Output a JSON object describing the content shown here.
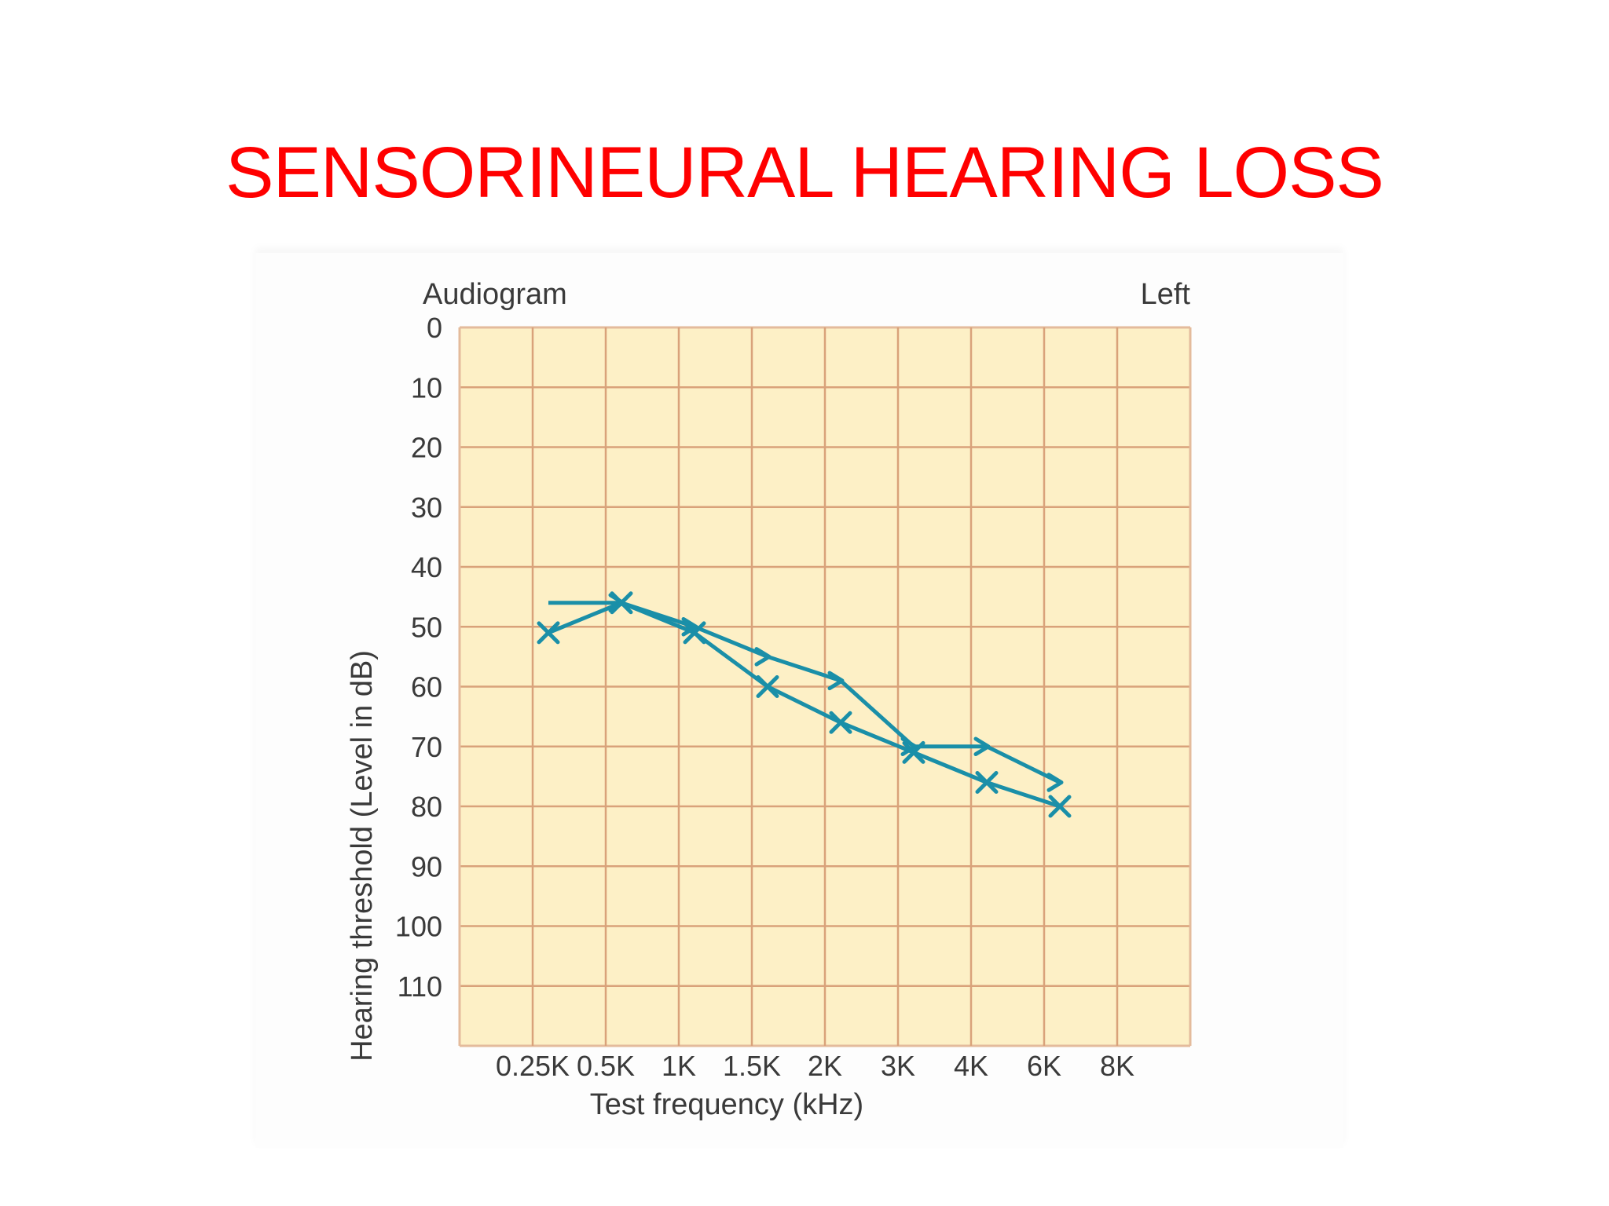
{
  "slide": {
    "title": "SENSORINEURAL HEARING LOSS"
  },
  "chart_data": {
    "type": "line",
    "title": "Audiogram",
    "corner_label": "Left",
    "xlabel": "Test frequency (kHz)",
    "ylabel": "Hearing threshold (Level in dB)",
    "categories": [
      "0.25K",
      "0.5K",
      "1K",
      "1.5K",
      "2K",
      "3K",
      "4K",
      "6K",
      "8K"
    ],
    "yticks": [
      0,
      10,
      20,
      30,
      40,
      50,
      60,
      70,
      80,
      90,
      100,
      110
    ],
    "ylim": [
      0,
      120
    ],
    "y_inverted": true,
    "grid": true,
    "colors": {
      "plot_background": "#fdf0c6",
      "grid": "#d9a27a",
      "line": "#1a8fa8",
      "title_text": "#ff0000"
    },
    "series": [
      {
        "marker": "x",
        "points": [
          {
            "x": "0.25K",
            "y": 51
          },
          {
            "x": "0.5K",
            "y": 46
          },
          {
            "x": "1K",
            "y": 51
          },
          {
            "x": "1.5K",
            "y": 60
          },
          {
            "x": "2K",
            "y": 66
          },
          {
            "x": "3K",
            "y": 71
          },
          {
            "x": "4K",
            "y": 76
          },
          {
            "x": "6K",
            "y": 80
          }
        ]
      },
      {
        "marker": ">",
        "points": [
          {
            "x": "0.25K",
            "y": 46
          },
          {
            "x": "0.5K",
            "y": 46
          },
          {
            "x": "1K",
            "y": 50
          },
          {
            "x": "1.5K",
            "y": 55
          },
          {
            "x": "2K",
            "y": 59
          },
          {
            "x": "3K",
            "y": 70
          },
          {
            "x": "4K",
            "y": 70
          },
          {
            "x": "6K",
            "y": 76
          }
        ]
      }
    ]
  }
}
